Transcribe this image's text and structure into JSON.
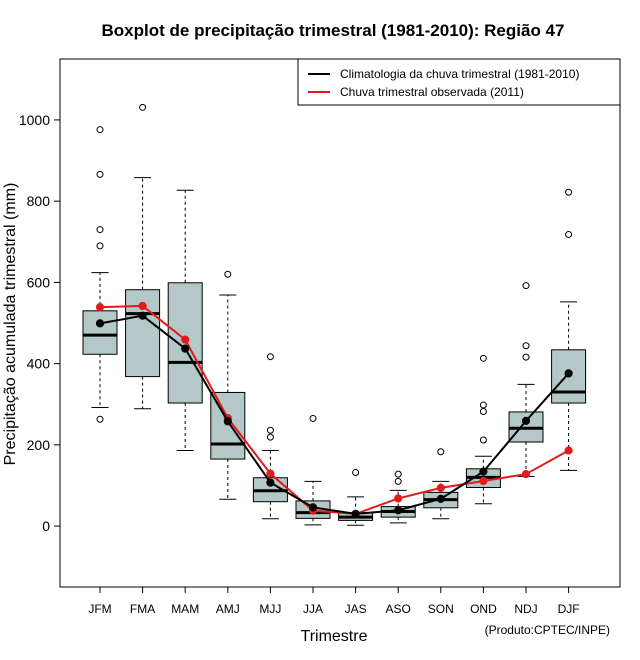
{
  "chart_data": {
    "type": "boxplot",
    "title": "Boxplot de precipitação trimestral (1981-2010): Região 47",
    "xlabel": "Trimestre",
    "ylabel": "Precipitação acumulada trimestral (mm)",
    "ylim": [
      -150,
      1150
    ],
    "yticks": [
      0,
      200,
      400,
      600,
      800,
      1000
    ],
    "categories": [
      "JFM",
      "FMA",
      "MAM",
      "AMJ",
      "MJJ",
      "JJA",
      "JAS",
      "ASO",
      "SON",
      "OND",
      "NDJ",
      "DJF"
    ],
    "boxes": [
      {
        "whisker_low": 292,
        "q1": 423,
        "median": 470,
        "q3": 530,
        "whisker_high": 624,
        "outliers": [
          263,
          690,
          730,
          866,
          976
        ]
      },
      {
        "whisker_low": 289,
        "q1": 368,
        "median": 523,
        "q3": 582,
        "whisker_high": 858,
        "outliers": [
          1031
        ]
      },
      {
        "whisker_low": 186,
        "q1": 303,
        "median": 403,
        "q3": 599,
        "whisker_high": 827,
        "outliers": []
      },
      {
        "whisker_low": 66,
        "q1": 165,
        "median": 202,
        "q3": 329,
        "whisker_high": 569,
        "outliers": [
          620
        ]
      },
      {
        "whisker_low": 18,
        "q1": 60,
        "median": 87,
        "q3": 119,
        "whisker_high": 186,
        "outliers": [
          219,
          236,
          417
        ]
      },
      {
        "whisker_low": 3,
        "q1": 19,
        "median": 33,
        "q3": 62,
        "whisker_high": 110,
        "outliers": [
          265
        ]
      },
      {
        "whisker_low": 2,
        "q1": 14,
        "median": 22,
        "q3": 33,
        "whisker_high": 72,
        "outliers": [
          132
        ]
      },
      {
        "whisker_low": 8,
        "q1": 22,
        "median": 36,
        "q3": 48,
        "whisker_high": 88,
        "outliers": [
          110,
          128
        ]
      },
      {
        "whisker_low": 18,
        "q1": 45,
        "median": 65,
        "q3": 83,
        "whisker_high": 110,
        "outliers": [
          183
        ]
      },
      {
        "whisker_low": 55,
        "q1": 95,
        "median": 120,
        "q3": 141,
        "whisker_high": 172,
        "outliers": [
          212,
          282,
          298,
          413
        ]
      },
      {
        "whisker_low": 122,
        "q1": 207,
        "median": 241,
        "q3": 281,
        "whisker_high": 349,
        "outliers": [
          416,
          444,
          592
        ]
      },
      {
        "whisker_low": 137,
        "q1": 303,
        "median": 330,
        "q3": 434,
        "whisker_high": 552,
        "outliers": [
          718,
          822
        ]
      }
    ],
    "series": [
      {
        "name": "Climatologia da chuva trimestral (1981-2010)",
        "color": "#000000",
        "values": [
          499,
          518,
          437,
          258,
          107,
          46,
          30,
          39,
          67,
          134,
          259,
          376
        ]
      },
      {
        "name": "Chuva trimestral observada (2011)",
        "color": "#e41a1c",
        "values": [
          539,
          542,
          459,
          266,
          129,
          38,
          30,
          68,
          94,
          111,
          128,
          186
        ]
      }
    ],
    "legend_position": "top-right",
    "box_fill": "#b4c8c8",
    "footer": "(Produto:CPTEC/INPE)"
  }
}
